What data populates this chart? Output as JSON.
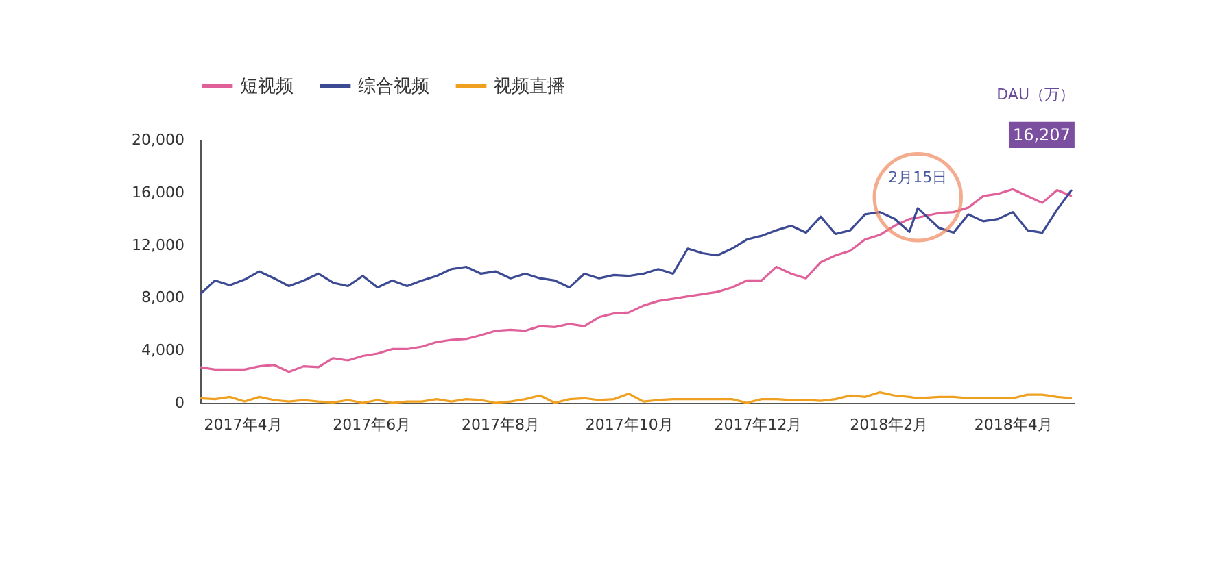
{
  "chart_data": {
    "type": "line",
    "ylabel": "DAU（万）",
    "legend": "top left",
    "x": [
      "2017-03-12",
      "2017-03-19",
      "2017-03-26",
      "2017-04-02",
      "2017-04-09",
      "2017-04-16",
      "2017-04-23",
      "2017-04-30",
      "2017-05-07",
      "2017-05-14",
      "2017-05-21",
      "2017-05-28",
      "2017-06-04",
      "2017-06-11",
      "2017-06-18",
      "2017-06-25",
      "2017-07-02",
      "2017-07-09",
      "2017-07-16",
      "2017-07-23",
      "2017-07-30",
      "2017-08-06",
      "2017-08-13",
      "2017-08-20",
      "2017-08-27",
      "2017-09-03",
      "2017-09-10",
      "2017-09-17",
      "2017-09-24",
      "2017-10-01",
      "2017-10-08",
      "2017-10-15",
      "2017-10-22",
      "2017-10-29",
      "2017-11-05",
      "2017-11-12",
      "2017-11-19",
      "2017-11-26",
      "2017-12-03",
      "2017-12-10",
      "2017-12-17",
      "2017-12-24",
      "2017-12-31",
      "2018-01-07",
      "2018-01-14",
      "2018-01-21",
      "2018-01-28",
      "2018-02-04",
      "2018-02-11",
      "2018-02-15",
      "2018-02-25",
      "2018-03-04",
      "2018-03-11",
      "2018-03-18",
      "2018-03-25",
      "2018-04-01",
      "2018-04-08",
      "2018-04-15",
      "2018-04-22",
      "2018-04-29"
    ],
    "series": [
      {
        "name": "短视频",
        "color": "#e0609a",
        "values": [
          2710,
          2530,
          2530,
          2530,
          2780,
          2880,
          2360,
          2780,
          2710,
          3400,
          3230,
          3570,
          3750,
          4090,
          4090,
          4270,
          4620,
          4790,
          4860,
          5140,
          5480,
          5550,
          5480,
          5830,
          5760,
          6000,
          5830,
          6520,
          6800,
          6870,
          7390,
          7740,
          7910,
          8090,
          8260,
          8430,
          8780,
          9300,
          9300,
          10340,
          9820,
          9470,
          10690,
          11210,
          11560,
          12420,
          12770,
          13460,
          13980,
          14090,
          14430,
          14500,
          14850,
          15720,
          15890,
          16240,
          15720,
          15200,
          16170,
          15720
        ]
      },
      {
        "name": "综合视频",
        "color": "#3c4a94",
        "values": [
          8260,
          9300,
          8950,
          9370,
          9990,
          9470,
          8880,
          9300,
          9820,
          9130,
          8880,
          9650,
          8780,
          9300,
          8880,
          9300,
          9650,
          10170,
          10340,
          9820,
          9990,
          9470,
          9820,
          9470,
          9300,
          8780,
          9820,
          9470,
          9720,
          9650,
          9820,
          10170,
          9820,
          11730,
          11380,
          11210,
          11730,
          12420,
          12700,
          13120,
          13460,
          12940,
          14160,
          12840,
          13120,
          14330,
          14500,
          14000,
          13000,
          14800,
          13300,
          12940,
          14330,
          13810,
          13980,
          14500,
          13120,
          12940,
          14680,
          16207
        ]
      },
      {
        "name": "视频直播",
        "color": "#f0a020",
        "values": [
          350,
          280,
          450,
          100,
          450,
          210,
          100,
          210,
          100,
          30,
          210,
          0,
          210,
          0,
          100,
          100,
          280,
          100,
          280,
          210,
          0,
          100,
          280,
          560,
          0,
          280,
          350,
          210,
          280,
          690,
          100,
          210,
          280,
          280,
          280,
          280,
          280,
          0,
          280,
          280,
          210,
          210,
          150,
          280,
          560,
          450,
          800,
          560,
          450,
          350,
          450,
          450,
          350,
          350,
          350,
          350,
          620,
          620,
          450,
          350
        ]
      }
    ],
    "xlim": [
      "2017-03-12",
      "2018-04-30"
    ],
    "xticks": [
      {
        "value": "2017-04-01",
        "label": "2017年4月"
      },
      {
        "value": "2017-06-01",
        "label": "2017年6月"
      },
      {
        "value": "2017-08-01",
        "label": "2017年8月"
      },
      {
        "value": "2017-10-01",
        "label": "2017年10月"
      },
      {
        "value": "2017-12-01",
        "label": "2017年12月"
      },
      {
        "value": "2018-02-01",
        "label": "2018年2月"
      },
      {
        "value": "2018-04-01",
        "label": "2018年4月"
      }
    ],
    "ylim": [
      0,
      20000
    ],
    "yticks": [
      {
        "value": 0,
        "label": "0"
      },
      {
        "value": 4000,
        "label": "4,000"
      },
      {
        "value": 8000,
        "label": "8,000"
      },
      {
        "value": 12000,
        "label": "12,000"
      },
      {
        "value": 16000,
        "label": "16,000"
      },
      {
        "value": 20000,
        "label": "20,000"
      }
    ],
    "annotations": [
      {
        "text": "2月15日",
        "x": "2018-02-15",
        "y": 14800
      },
      {
        "text": "16,207",
        "x": "2018-04-29",
        "y": 16207
      }
    ]
  }
}
